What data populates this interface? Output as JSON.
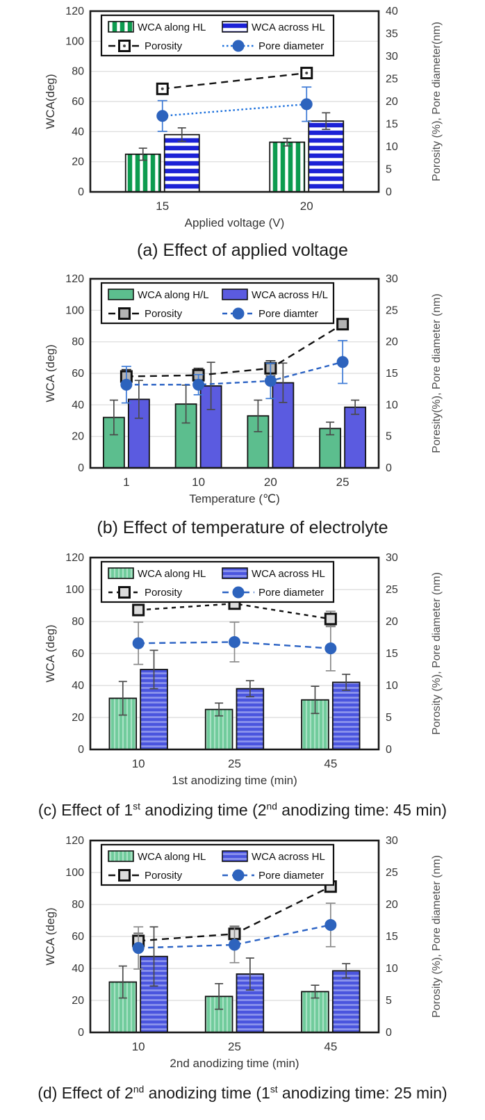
{
  "page": {
    "background": "#ffffff"
  },
  "fills": {
    "green_bold": {
      "type": "stripes",
      "dir": "vertical",
      "base": "#0d9b4f",
      "stripe": "#ffffff",
      "period": 11,
      "stripe_w": 4.5
    },
    "blue_bold": {
      "type": "stripes",
      "dir": "horizontal",
      "base": "#1c22d6",
      "stripe": "#ffffff",
      "period": 11,
      "stripe_w": 4.5
    },
    "green_solid": {
      "type": "solid",
      "base": "#5cbe8e"
    },
    "blue_solid": {
      "type": "solid",
      "base": "#5b5be0"
    },
    "green_soft": {
      "type": "stripes",
      "dir": "vertical",
      "base": "#6fcb9b",
      "stripe": "#a9e2c5",
      "period": 6,
      "stripe_w": 2.2
    },
    "blue_soft": {
      "type": "stripes",
      "dir": "horizontal",
      "base": "#4a55de",
      "stripe": "#8f97ee",
      "period": 7,
      "stripe_w": 2.6
    }
  },
  "chart_data": [
    {
      "id": "a",
      "type": "bar",
      "title": "(a) Effect of applied voltage",
      "caption_parts": [
        {
          "text": "(a)  Effect of applied voltage",
          "sup": false
        }
      ],
      "categories": [
        "15",
        "20"
      ],
      "x_label": "Applied voltage  (V)",
      "left_axis": {
        "label": "WCA(deg)",
        "min": 0,
        "max": 120,
        "step": 20
      },
      "right_axis": {
        "label": "Porosity (%),  Pore diameter(nm)",
        "min": 0,
        "max": 40,
        "step": 5
      },
      "grid": "horizontal",
      "legend_position": "top-inside",
      "bar_series": [
        {
          "name": "WCA along HL",
          "axis": "left",
          "fill": "green_bold",
          "values": [
            25,
            33
          ],
          "errors": [
            4,
            2.5
          ],
          "err_color": "#4a4a4a"
        },
        {
          "name": "WCA across HL",
          "axis": "left",
          "fill": "blue_bold",
          "values": [
            38,
            47
          ],
          "errors": [
            4.5,
            5.5
          ],
          "err_color": "#4a4a4a"
        }
      ],
      "line_series": [
        {
          "name": "Porosity",
          "axis": "right",
          "color": "#111111",
          "dash": "10 7",
          "marker": "square",
          "marker_fill": "#ffffff",
          "marker_dot": true,
          "values": [
            22.8,
            26.3
          ],
          "errors": [
            0,
            0
          ],
          "err_color": "#111111"
        },
        {
          "name": "Pore diameter",
          "axis": "right",
          "color": "#1a6fdc",
          "dash": "2.5 3.5",
          "marker": "circle",
          "marker_fill": "#2d63bd",
          "marker_dot": false,
          "values": [
            16.8,
            19.4
          ],
          "errors": [
            3.4,
            3.8
          ],
          "err_color": "#3d7ad6"
        }
      ]
    },
    {
      "id": "b",
      "type": "bar",
      "title": "(b) Effect of temperature of electrolyte",
      "caption_parts": [
        {
          "text": "(b) Effect of temperature of electrolyte",
          "sup": false
        }
      ],
      "categories": [
        "1",
        "10",
        "20",
        "25"
      ],
      "x_label": "Temperature (℃)",
      "left_axis": {
        "label": "WCA (deg)",
        "min": 0,
        "max": 120,
        "step": 20
      },
      "right_axis": {
        "label": "Poresity(%),  Pore diameter (nm)",
        "min": 0,
        "max": 30,
        "step": 5
      },
      "grid": "horizontal",
      "legend_position": "top-inside",
      "bar_series": [
        {
          "name": "WCA along H/L",
          "axis": "left",
          "fill": "green_solid",
          "values": [
            32,
            40.5,
            33,
            25
          ],
          "errors": [
            11,
            12,
            10,
            4
          ],
          "err_color": "#4a4a4a"
        },
        {
          "name": "WCA across H/L",
          "axis": "left",
          "fill": "blue_solid",
          "values": [
            43.5,
            52,
            54,
            38.5
          ],
          "errors": [
            12,
            15,
            12.5,
            4.5
          ],
          "err_color": "#4a4a4a"
        }
      ],
      "line_series": [
        {
          "name": "Porosity",
          "axis": "right",
          "color": "#111111",
          "dash": "10 7",
          "marker": "square",
          "marker_fill": "#b3b3b3",
          "marker_dot": false,
          "values": [
            14.5,
            14.7,
            15.8,
            22.8
          ],
          "errors": [
            1.1,
            1.1,
            1.2,
            0.6
          ],
          "err_color": "#333333"
        },
        {
          "name": "Pore diamter",
          "axis": "right",
          "color": "#2a62c4",
          "dash": "7 5",
          "marker": "circle",
          "marker_fill": "#2d63bd",
          "marker_dot": false,
          "values": [
            13.2,
            13.2,
            13.8,
            16.8
          ],
          "errors": [
            2.9,
            1.6,
            2.8,
            3.4
          ],
          "err_color": "#3d7ad6"
        }
      ]
    },
    {
      "id": "c",
      "type": "bar",
      "title": "(c) Effect of 1st anodizing time (2nd anodizing time: 45 min)",
      "caption_parts": [
        {
          "text": "(c) Effect of 1",
          "sup": false
        },
        {
          "text": "st",
          "sup": true
        },
        {
          "text": " anodizing time (2",
          "sup": false
        },
        {
          "text": "nd",
          "sup": true
        },
        {
          "text": " anodizing time: 45 min)",
          "sup": false
        }
      ],
      "categories": [
        "10",
        "25",
        "45"
      ],
      "x_label": "1st anodizing  time (min)",
      "left_axis": {
        "label": "WCA (deg)",
        "min": 0,
        "max": 120,
        "step": 20
      },
      "right_axis": {
        "label": "Porosity (%), Pore diameter (nm)",
        "min": 0,
        "max": 30,
        "step": 5
      },
      "grid": "horizontal",
      "legend_position": "top-inside",
      "bar_series": [
        {
          "name": "WCA along HL",
          "axis": "left",
          "fill": "green_soft",
          "values": [
            32,
            25,
            31
          ],
          "errors": [
            10.5,
            4,
            8.5
          ],
          "err_color": "#4a4a4a"
        },
        {
          "name": "WCA across HL",
          "axis": "left",
          "fill": "blue_soft",
          "values": [
            50,
            38,
            42
          ],
          "errors": [
            12,
            5,
            5
          ],
          "err_color": "#4a4a4a"
        }
      ],
      "line_series": [
        {
          "name": "Porosity",
          "axis": "right",
          "color": "#111111",
          "dash": "6 6",
          "marker": "square",
          "marker_fill": "#dcdcdc",
          "marker_dot": false,
          "values": [
            21.8,
            22.8,
            20.4
          ],
          "errors": [
            0.7,
            0.8,
            1.2
          ],
          "err_color": "#888888"
        },
        {
          "name": "Pore diameter",
          "axis": "right",
          "color": "#2a62c4",
          "dash": "9 6",
          "marker": "circle",
          "marker_fill": "#2d63bd",
          "marker_dot": false,
          "values": [
            16.6,
            16.8,
            15.8
          ],
          "errors": [
            3.3,
            3.1,
            3.5
          ],
          "err_color": "#8a8a8a"
        }
      ]
    },
    {
      "id": "d",
      "type": "bar",
      "title": "(d) Effect of 2nd anodizing time (1st anodizing time: 25 min)",
      "caption_parts": [
        {
          "text": "(d)  Effect of 2",
          "sup": false
        },
        {
          "text": "nd",
          "sup": true
        },
        {
          "text": " anodizing time (1",
          "sup": false
        },
        {
          "text": "st",
          "sup": true
        },
        {
          "text": " anodizing time: 25 min)",
          "sup": false
        }
      ],
      "categories": [
        "10",
        "25",
        "45"
      ],
      "x_label": "2nd anodizing  time (min)",
      "left_axis": {
        "label": "WCA (deg)",
        "min": 0,
        "max": 120,
        "step": 20
      },
      "right_axis": {
        "label": "Porosity (%), Pore diameter (nm)",
        "min": 0,
        "max": 30,
        "step": 5
      },
      "grid": "horizontal",
      "legend_position": "top-inside",
      "bar_series": [
        {
          "name": "WCA along HL",
          "axis": "left",
          "fill": "green_soft",
          "values": [
            31.5,
            22.5,
            25.5
          ],
          "errors": [
            10,
            8,
            4
          ],
          "err_color": "#4a4a4a"
        },
        {
          "name": "WCA across HL",
          "axis": "left",
          "fill": "blue_soft",
          "values": [
            47.5,
            36.5,
            38.5
          ],
          "errors": [
            18.5,
            10,
            4.5
          ],
          "err_color": "#4a4a4a"
        }
      ],
      "line_series": [
        {
          "name": "Porosity",
          "axis": "right",
          "color": "#111111",
          "dash": "10 7",
          "marker": "square",
          "marker_fill": "#dcdcdc",
          "marker_dot": false,
          "values": [
            14.3,
            15.4,
            22.8
          ],
          "errors": [
            1.2,
            1.2,
            0.6
          ],
          "err_color": "#555555"
        },
        {
          "name": "Pore diameter",
          "axis": "right",
          "color": "#2a62c4",
          "dash": "8 6",
          "marker": "circle",
          "marker_fill": "#2d63bd",
          "marker_dot": false,
          "values": [
            13.2,
            13.7,
            16.8
          ],
          "errors": [
            3.3,
            2.8,
            3.4
          ],
          "err_color": "#8a8a8a"
        }
      ]
    }
  ]
}
